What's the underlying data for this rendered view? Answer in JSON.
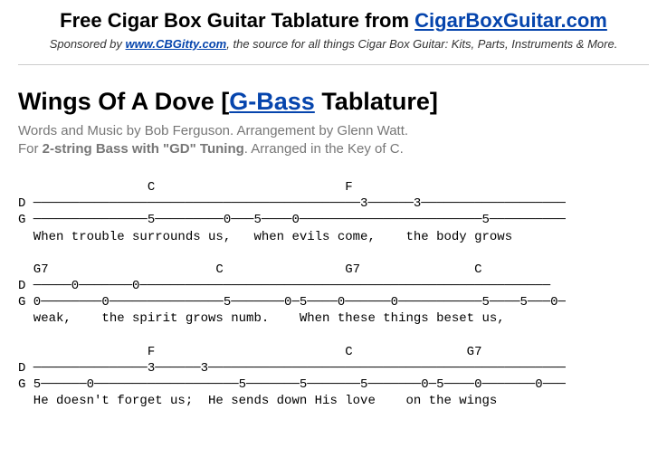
{
  "header": {
    "title_prefix": "Free Cigar Box Guitar Tablature from ",
    "title_link": "CigarBoxGuitar.com",
    "sponsor_prefix": "Sponsored by ",
    "sponsor_link": "www.CBGitty.com",
    "sponsor_suffix": ", the source for all things Cigar Box Guitar: Kits, Parts, Instruments & More."
  },
  "song": {
    "title_prefix": "Wings Of A Dove [",
    "title_link": "G-Bass",
    "title_suffix": " Tablature]",
    "credits": "Words and Music by Bob Ferguson. Arrangement by Glenn Watt.",
    "tuning_prefix": "For ",
    "tuning_bold": "2-string Bass with \"GD\" Tuning",
    "tuning_suffix": ". Arranged in the Key of C."
  },
  "tab": {
    "block1": "                 C                         F\nD ───────────────────────────────────────────3──────3───────────────────\nG ───────────────5─────────0───5────0────────────────────────5──────────\n  When trouble surrounds us,   when evils come,    the body grows",
    "block2": "  G7                      C                G7               C\nD ─────0───────0──────────────────────────────────────────────────────\nG 0────────0───────────────5───────0─5────0──────0───────────5────5───0─\n  weak,    the spirit grows numb.    When these things beset us,",
    "block3": "                 F                         C               G7\nD ───────────────3──────3───────────────────────────────────────────────\nG 5──────0───────────────────5───────5───────5───────0─5────0───────0───\n  He doesn't forget us;  He sends down His love    on the wings"
  },
  "style": {
    "link_color": "#0645ad",
    "text_color": "#000000",
    "meta_color": "#777777",
    "bg_color": "#ffffff",
    "hr_color": "#cccccc",
    "title_fontsize": 22,
    "song_title_fontsize": 27,
    "credits_fontsize": 15,
    "tab_fontsize": 14,
    "tab_font": "Courier New"
  }
}
